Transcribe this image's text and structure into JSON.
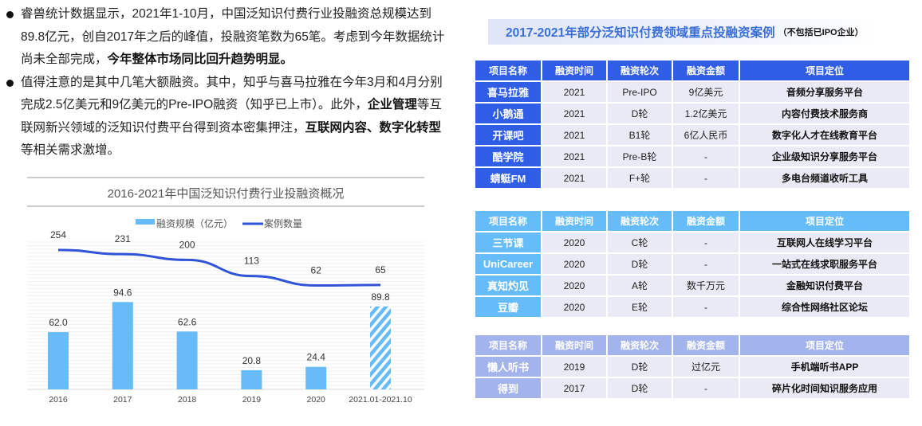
{
  "bullets": [
    [
      {
        "t": "睿兽统计数据显示，2021年1-10月，中国泛知识付费行业投融资总规模达到89.8亿元，创自2017年之后的峰值，投融资笔数为65笔。考虑到今年数据统计尚未全部完成，",
        "b": false
      },
      {
        "t": "今年整体市场同比回升趋势明显。",
        "b": true
      }
    ],
    [
      {
        "t": "值得注意的是其中几笔大额融资。其中，知乎与喜马拉雅在今年3月和4月分别完成2.5亿美元和9亿美元的Pre-IPO融资（知乎已上市）。此外，",
        "b": false
      },
      {
        "t": "企业管理",
        "b": true
      },
      {
        "t": "等互联网新兴领域的泛知识付费平台得到资本密集押注，",
        "b": false
      },
      {
        "t": "互联网内容、数字化转型",
        "b": true
      },
      {
        "t": "等相关需求激增。",
        "b": false
      }
    ]
  ],
  "chart_data": {
    "type": "bar+line",
    "title": "2016-2021年中国泛知识付费行业投融资概况",
    "categories": [
      "2016",
      "2017",
      "2018",
      "2019",
      "2020",
      "2021.01-2021.10"
    ],
    "series": [
      {
        "name": "融资规模（亿元）",
        "type": "bar",
        "color": "#66bbf8",
        "values": [
          62.0,
          94.6,
          62.6,
          20.8,
          24.4,
          89.8
        ],
        "labels": [
          "62.0",
          "94.6",
          "62.6",
          "20.8",
          "24.4",
          "89.8"
        ],
        "last_hatched": true
      },
      {
        "name": "案例数量",
        "type": "line",
        "color": "#2f54d8",
        "values": [
          254,
          231,
          200,
          113,
          62,
          65
        ],
        "labels": [
          "254",
          "231",
          "200",
          "113",
          "62",
          "65"
        ]
      }
    ],
    "grid": true,
    "legend": "top"
  },
  "banner": {
    "main": "2017-2021年部分泛知识付费领域重点投融资案例",
    "sub": "（不包括已IPO企业）"
  },
  "headers": [
    "项目名称",
    "融资时间",
    "融资轮次",
    "融资金额",
    "项目定位"
  ],
  "tables": [
    [
      [
        "喜马拉雅",
        "2021",
        "Pre-IPO",
        "9亿美元",
        "音频分享服务平台"
      ],
      [
        "小鹅通",
        "2021",
        "D轮",
        "1.2亿美元",
        "内容付费技术服务商"
      ],
      [
        "开课吧",
        "2021",
        "B1轮",
        "6亿人民币",
        "数字化人才在线教育平台"
      ],
      [
        "酷学院",
        "2021",
        "Pre-B轮",
        "-",
        "企业级知识分享服务平台"
      ],
      [
        "蜻蜓FM",
        "2021",
        "F+轮",
        "-",
        "多电台频道收听工具"
      ]
    ],
    [
      [
        "三节课",
        "2020",
        "C轮",
        "-",
        "互联网人在线学习平台"
      ],
      [
        "UniCareer",
        "2020",
        "D轮",
        "-",
        "一站式在线求职服务平台"
      ],
      [
        "真知灼见",
        "2020",
        "A轮",
        "数千万元",
        "金融知识付费平台"
      ],
      [
        "豆瓣",
        "2020",
        "E轮",
        "-",
        "综合性网络社区论坛"
      ]
    ],
    [
      [
        "懒人听书",
        "2019",
        "D轮",
        "过亿元",
        "手机端听书APP"
      ],
      [
        "得到",
        "2017",
        "D轮",
        "-",
        "碎片化时间知识服务应用"
      ]
    ]
  ],
  "colors": {
    "table1": "#2f5de6",
    "table2": "#66bcf9",
    "table3": "#a3b3ec",
    "row": "#e9eaf5"
  }
}
